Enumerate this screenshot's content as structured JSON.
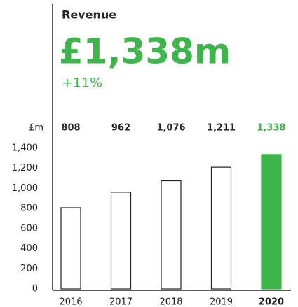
{
  "chart_data": {
    "type": "bar",
    "title": "Revenue",
    "headline": "£1,338m",
    "change": "+11%",
    "unit_label": "£m",
    "categories": [
      "2016",
      "2017",
      "2018",
      "2019",
      "2020"
    ],
    "values": [
      808,
      962,
      1076,
      1211,
      1338
    ],
    "value_labels": [
      "808",
      "962",
      "1,076",
      "1,211",
      "1,338"
    ],
    "colors": [
      "#ffffff",
      "#ffffff",
      "#ffffff",
      "#ffffff",
      "#3db54a"
    ],
    "outline": "#222222",
    "accent": "#3db54a",
    "ylim": [
      0,
      1400
    ],
    "yticks": [
      0,
      200,
      400,
      600,
      800,
      {
        "value": 1000,
        "label": "1,000"
      },
      {
        "value": 1200,
        "label": "1,200"
      },
      {
        "value": 1400,
        "label": "1,400"
      }
    ],
    "grid": false
  }
}
